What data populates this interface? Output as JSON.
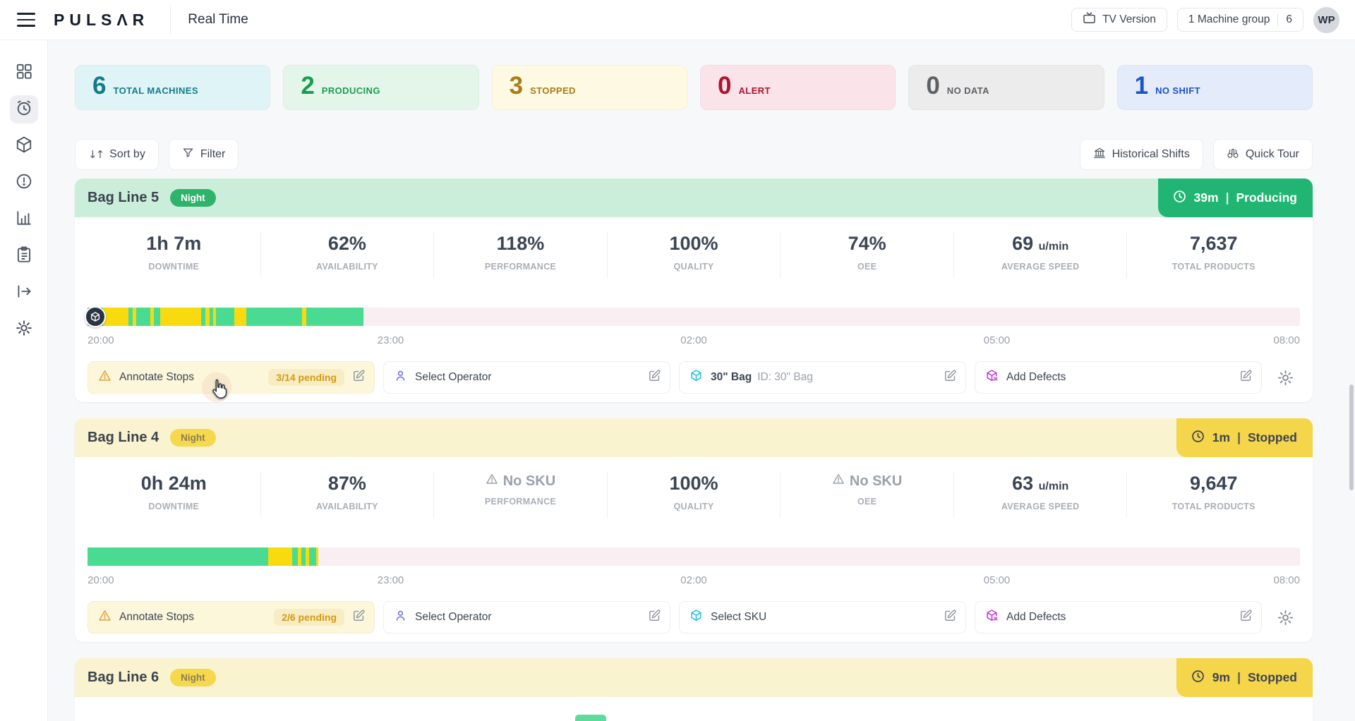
{
  "header": {
    "logo": "PULSΛR",
    "page_title": "Real Time",
    "tv_version_label": "TV Version",
    "machine_group_label": "1 Machine group",
    "machine_group_count": "6",
    "avatar_initials": "WP"
  },
  "summary_cards": [
    {
      "value": "6",
      "label": "TOTAL MACHINES",
      "bg": "#dff4f7",
      "color": "#117c8a"
    },
    {
      "value": "2",
      "label": "PRODUCING",
      "bg": "#e4f6ea",
      "color": "#1b9d4f"
    },
    {
      "value": "3",
      "label": "STOPPED",
      "bg": "#fdf9e2",
      "color": "#aa7c17"
    },
    {
      "value": "0",
      "label": "ALERT",
      "bg": "#fae3e9",
      "color": "#ad1430"
    },
    {
      "value": "0",
      "label": "NO DATA",
      "bg": "#ececec",
      "color": "#5c6166"
    },
    {
      "value": "1",
      "label": "NO SHIFT",
      "bg": "#e4ebfa",
      "color": "#1c53c8"
    }
  ],
  "toolbar": {
    "sort_label": "Sort by",
    "filter_label": "Filter",
    "historical_label": "Historical Shifts",
    "quick_tour_label": "Quick Tour"
  },
  "timeline_ticks": [
    "20:00",
    "23:00",
    "02:00",
    "05:00",
    "08:00"
  ],
  "timeline_colors": {
    "producing": "#4adb92",
    "stopped": "#f9da0f",
    "empty": "#f9eef1"
  },
  "machines": [
    {
      "name": "Bag Line 5",
      "shift": "Night",
      "status_time": "39m",
      "status_text": "Producing",
      "metrics": [
        {
          "value": "1h 7m",
          "label": "DOWNTIME"
        },
        {
          "value": "62%",
          "label": "AVAILABILITY"
        },
        {
          "value": "118%",
          "label": "PERFORMANCE"
        },
        {
          "value": "100%",
          "label": "QUALITY"
        },
        {
          "value": "74%",
          "label": "OEE"
        },
        {
          "value": "69",
          "unit": "u/min",
          "label": "AVERAGE SPEED"
        },
        {
          "value": "7,637",
          "label": "TOTAL PRODUCTS"
        }
      ],
      "timeline": [
        {
          "color": "#4adb92",
          "w": 1.3
        },
        {
          "color": "#f9da0f",
          "w": 2.1
        },
        {
          "color": "#4adb92",
          "w": 0.35
        },
        {
          "color": "#f9da0f",
          "w": 0.25
        },
        {
          "color": "#4adb92",
          "w": 1.2
        },
        {
          "color": "#f9da0f",
          "w": 0.3
        },
        {
          "color": "#4adb92",
          "w": 0.5
        },
        {
          "color": "#f9da0f",
          "w": 3.4
        },
        {
          "color": "#4adb92",
          "w": 0.3
        },
        {
          "color": "#f9da0f",
          "w": 0.4
        },
        {
          "color": "#4adb92",
          "w": 0.25
        },
        {
          "color": "#f9da0f",
          "w": 0.25
        },
        {
          "color": "#4adb92",
          "w": 1.5
        },
        {
          "color": "#f9da0f",
          "w": 1.0
        },
        {
          "color": "#4adb92",
          "w": 4.6
        },
        {
          "color": "#f9da0f",
          "w": 0.35
        },
        {
          "color": "#4adb92",
          "w": 4.7
        }
      ],
      "actions": {
        "annotate_label": "Annotate Stops",
        "annotate_pending": "3/14 pending",
        "operator_label": "Select Operator",
        "sku_label": "30\" Bag",
        "sku_id": "ID: 30\" Bag",
        "defects_label": "Add Defects"
      }
    },
    {
      "name": "Bag Line 4",
      "shift": "Night",
      "status_time": "1m",
      "status_text": "Stopped",
      "metrics": [
        {
          "value": "0h 24m",
          "label": "DOWNTIME"
        },
        {
          "value": "87%",
          "label": "AVAILABILITY"
        },
        {
          "value": "No SKU",
          "label": "PERFORMANCE",
          "warning": true
        },
        {
          "value": "100%",
          "label": "QUALITY"
        },
        {
          "value": "No SKU",
          "label": "OEE",
          "warning": true
        },
        {
          "value": "63",
          "unit": "u/min",
          "label": "AVERAGE SPEED"
        },
        {
          "value": "9,647",
          "label": "TOTAL PRODUCTS"
        }
      ],
      "timeline": [
        {
          "color": "#4adb92",
          "w": 14.9
        },
        {
          "color": "#f9da0f",
          "w": 2.0
        },
        {
          "color": "#4adb92",
          "w": 0.45
        },
        {
          "color": "#f9da0f",
          "w": 0.3
        },
        {
          "color": "#4adb92",
          "w": 0.35
        },
        {
          "color": "#f9da0f",
          "w": 0.3
        },
        {
          "color": "#4adb92",
          "w": 0.55
        },
        {
          "color": "#f9da0f",
          "w": 0.2
        }
      ],
      "actions": {
        "annotate_label": "Annotate Stops",
        "annotate_pending": "2/6 pending",
        "operator_label": "Select Operator",
        "sku_label": "Select SKU",
        "sku_id": "",
        "defects_label": "Add Defects"
      }
    },
    {
      "name": "Bag Line 6",
      "shift": "Night",
      "status_time": "9m",
      "status_text": "Stopped"
    }
  ]
}
